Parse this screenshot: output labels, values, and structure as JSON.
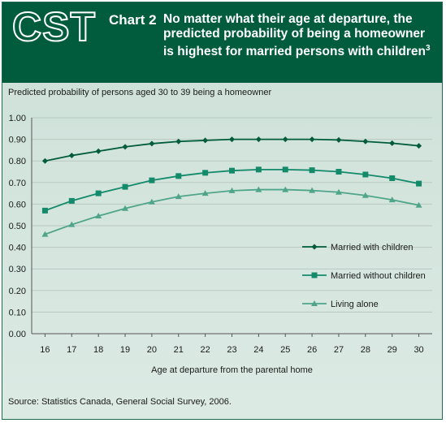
{
  "header": {
    "logo_text": "CST",
    "chart_number": "Chart 2",
    "title": "No matter what their age at departure, the predicted probability of being a homeowner is highest for married persons with children",
    "title_note": "3"
  },
  "subtitle": "Predicted probability of persons aged 30 to 39 being a homeowner",
  "source": "Source: Statistics Canada, General Social Survey, 2006.",
  "colors": {
    "header_bg": "#005c3c",
    "series_dark": "#005c3c",
    "series_mid": "#138a6a",
    "series_light": "#4fa58a"
  },
  "chart_data": {
    "type": "line",
    "xlabel": "Age at departure from the parental home",
    "ylabel": "",
    "ylim": [
      0,
      1
    ],
    "y_ticks": [
      "0.00",
      "0.10",
      "0.20",
      "0.30",
      "0.40",
      "0.50",
      "0.60",
      "0.70",
      "0.80",
      "0.90",
      "1.00"
    ],
    "grid": true,
    "legend_position": "right",
    "x": [
      16,
      17,
      18,
      19,
      20,
      21,
      22,
      23,
      24,
      25,
      26,
      27,
      28,
      29,
      30
    ],
    "series": [
      {
        "name": "Married with children",
        "marker": "diamond",
        "values": [
          0.8,
          0.825,
          0.845,
          0.865,
          0.88,
          0.89,
          0.895,
          0.9,
          0.9,
          0.9,
          0.9,
          0.897,
          0.89,
          0.882,
          0.87
        ]
      },
      {
        "name": "Married without children",
        "marker": "square",
        "values": [
          0.57,
          0.615,
          0.65,
          0.68,
          0.71,
          0.73,
          0.745,
          0.755,
          0.76,
          0.76,
          0.757,
          0.75,
          0.737,
          0.72,
          0.695
        ]
      },
      {
        "name": "Living alone",
        "marker": "triangle",
        "values": [
          0.46,
          0.505,
          0.545,
          0.58,
          0.61,
          0.635,
          0.65,
          0.662,
          0.667,
          0.667,
          0.663,
          0.655,
          0.64,
          0.62,
          0.595
        ]
      }
    ]
  }
}
